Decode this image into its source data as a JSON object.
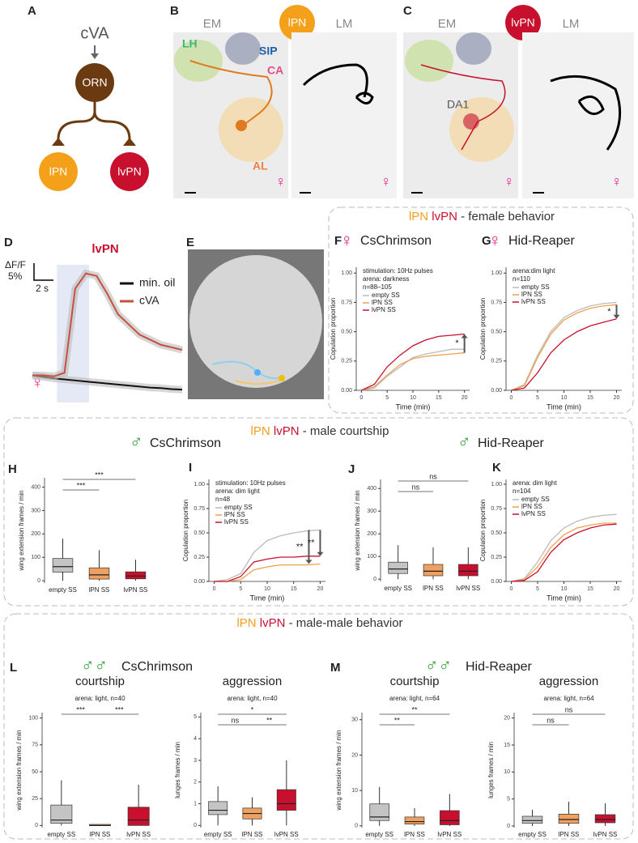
{
  "figure": {
    "panel_labels": [
      "A",
      "B",
      "C",
      "D",
      "E",
      "F",
      "G",
      "H",
      "I",
      "J",
      "K",
      "L",
      "M"
    ],
    "a": {
      "stimulus": "cVA",
      "orn": "ORN",
      "lpn": "lPN",
      "lvpn": "lvPN"
    },
    "b": {
      "em": "EM",
      "neuron": "lPN",
      "lm": "LM",
      "lh": "LH",
      "sip": "SIP",
      "ca": "CA",
      "al": "AL",
      "sex": "♀"
    },
    "c": {
      "em": "EM",
      "neuron": "lvPN",
      "lm": "LM",
      "da1": "DA1",
      "sex": "♀"
    },
    "sections": [
      {
        "neuron1": "lPN",
        "neuron2": "lvPN",
        "title": "- female behavior"
      },
      {
        "neuron1": "lPN",
        "neuron2": "lvPN",
        "title": "- male courtship"
      },
      {
        "neuron1": "lPN",
        "neuron2": "lvPN",
        "title": "- male-male behavior"
      }
    ],
    "conditions": [
      {
        "symbol": "♀",
        "name": "CsChrimson"
      },
      {
        "symbol": "♀",
        "name": "Hid-Reaper"
      },
      {
        "symbol": "♂",
        "name": "CsChrimson"
      },
      {
        "symbol": "♂",
        "name": "Hid-Reaper"
      },
      {
        "symbol": "♂♂",
        "name": "CsChrimson"
      },
      {
        "symbol": "♂♂",
        "name": "Hid-Reaper"
      }
    ]
  },
  "chart_data": [
    {
      "type": "trace",
      "title": "lvPN",
      "scalebar_y": [
        "ΔF/F",
        "5%"
      ],
      "scalebar_x": "2 s",
      "sex": "♀",
      "x": [
        0,
        1,
        2,
        3,
        4,
        5,
        6,
        7,
        8,
        9,
        10,
        11,
        12,
        13,
        14
      ],
      "xlim": [
        0,
        14
      ],
      "ylim": [
        -5,
        22
      ],
      "series": [
        {
          "name": "min. oil",
          "color": "#111111",
          "values": [
            0,
            -0.3,
            -0.6,
            -0.8,
            -1,
            -1.2,
            -1.4,
            -1.6,
            -1.8,
            -2,
            -2.2,
            -2.4,
            -2.5,
            -2.7,
            -2.8
          ]
        },
        {
          "name": "cVA",
          "color": "#c8503e",
          "values": [
            0,
            0,
            -0.2,
            0.5,
            17,
            20,
            19.5,
            16,
            12,
            10,
            8,
            7,
            6,
            5.5,
            5
          ]
        }
      ]
    },
    {
      "type": "line",
      "annotations": [
        "stimulation: 10Hz pulses",
        "arena: darkness",
        "n=88–105"
      ],
      "xlabel": "Time (min)",
      "ylabel": "Copulation proportion",
      "x": [
        0,
        2.5,
        5,
        7.5,
        10,
        12.5,
        15,
        17.5,
        20
      ],
      "xlim": [
        -1,
        21
      ],
      "xticks": [
        0,
        5,
        10,
        15,
        20
      ],
      "ylim": [
        0,
        1.05
      ],
      "yticks": [
        {
          "value": 0,
          "label": "0.00"
        },
        {
          "value": 0.25,
          "label": "0.25"
        },
        {
          "value": 0.5,
          "label": "0.50"
        },
        {
          "value": 0.75,
          "label": "0.75"
        },
        {
          "value": 1,
          "label": "1.00"
        }
      ],
      "series": [
        {
          "name": "empty SS",
          "color": "#bbbbbb",
          "values": [
            0,
            0.02,
            0.12,
            0.2,
            0.28,
            0.31,
            0.33,
            0.35,
            0.35
          ]
        },
        {
          "name": "lPN SS",
          "color": "#f0a050",
          "values": [
            0,
            0.03,
            0.13,
            0.22,
            0.27,
            0.29,
            0.3,
            0.31,
            0.32
          ]
        },
        {
          "name": "lvPN SS",
          "color": "#c8102e",
          "values": [
            0,
            0.05,
            0.2,
            0.3,
            0.38,
            0.43,
            0.46,
            0.47,
            0.48
          ]
        }
      ],
      "significance": [
        "*"
      ]
    },
    {
      "type": "line",
      "annotations": [
        "arena:dim light",
        "n=110"
      ],
      "xlabel": "Time (min)",
      "ylabel": "Copulation proportion",
      "x": [
        0,
        2.5,
        5,
        7.5,
        10,
        12.5,
        15,
        17.5,
        20
      ],
      "xlim": [
        -1,
        21
      ],
      "xticks": [
        0,
        5,
        10,
        15,
        20
      ],
      "ylim": [
        0,
        1.05
      ],
      "yticks": [
        {
          "value": 0,
          "label": "0.00"
        },
        {
          "value": 0.25,
          "label": "0.25"
        },
        {
          "value": 0.5,
          "label": "0.50"
        },
        {
          "value": 0.75,
          "label": "0.75"
        },
        {
          "value": 1,
          "label": "1.00"
        }
      ],
      "series": [
        {
          "name": "empty SS",
          "color": "#bbbbbb",
          "values": [
            0,
            0.05,
            0.3,
            0.5,
            0.62,
            0.68,
            0.72,
            0.74,
            0.75
          ]
        },
        {
          "name": "lPN SS",
          "color": "#f0a050",
          "values": [
            0,
            0.04,
            0.28,
            0.48,
            0.6,
            0.66,
            0.7,
            0.72,
            0.73
          ]
        },
        {
          "name": "lvPN SS",
          "color": "#c8102e",
          "values": [
            0,
            0.02,
            0.15,
            0.32,
            0.43,
            0.5,
            0.55,
            0.58,
            0.61
          ]
        }
      ],
      "significance": [
        "*"
      ]
    },
    {
      "type": "box",
      "ylabel": "wing extension frames / min",
      "categories": [
        "empty SS",
        "lPN SS",
        "lvPN SS"
      ],
      "colors": [
        "#c4c4c4",
        "#f0a060",
        "#c8102e"
      ],
      "ylim": [
        -10,
        440
      ],
      "yticks": [
        0,
        100,
        200,
        300,
        400
      ],
      "boxes": [
        {
          "min": 0,
          "q1": 37,
          "median": 60,
          "q3": 95,
          "max": 180
        },
        {
          "min": 0,
          "q1": 7,
          "median": 25,
          "q3": 55,
          "max": 130
        },
        {
          "min": 0,
          "q1": 8,
          "median": 20,
          "q3": 38,
          "max": 90
        }
      ],
      "significance": [
        "***",
        "***"
      ]
    },
    {
      "type": "line",
      "annotations": [
        "stimulation: 10Hz pulses",
        "arena: dim light",
        "n=48"
      ],
      "xlabel": "Time (min)",
      "ylabel": "Copulation proportion",
      "x": [
        0,
        2.5,
        5,
        7.5,
        10,
        12.5,
        15,
        17.5,
        20
      ],
      "xlim": [
        -1,
        21
      ],
      "xticks": [
        0,
        5,
        10,
        15,
        20
      ],
      "ylim": [
        0,
        1.05
      ],
      "yticks": [
        {
          "value": 0,
          "label": "0.00"
        },
        {
          "value": 0.25,
          "label": "0.25"
        },
        {
          "value": 0.5,
          "label": "0.50"
        },
        {
          "value": 0.75,
          "label": "0.75"
        },
        {
          "value": 1,
          "label": "1.00"
        }
      ],
      "series": [
        {
          "name": "empty SS",
          "color": "#bbbbbb",
          "values": [
            0,
            0.02,
            0.08,
            0.3,
            0.42,
            0.47,
            0.5,
            0.52,
            0.53
          ]
        },
        {
          "name": "lPN SS",
          "color": "#f0a050",
          "values": [
            0,
            0,
            0.02,
            0.12,
            0.15,
            0.17,
            0.17,
            0.17,
            0.18
          ]
        },
        {
          "name": "lvPN SS",
          "color": "#c8102e",
          "values": [
            0,
            0,
            0.05,
            0.2,
            0.23,
            0.25,
            0.25,
            0.26,
            0.26
          ]
        }
      ],
      "significance": [
        "**",
        "**"
      ]
    },
    {
      "type": "box",
      "ylabel": "wing extension frames / min",
      "categories": [
        "empty SS",
        "lPN SS",
        "lvPN SS"
      ],
      "colors": [
        "#c4c4c4",
        "#f0a060",
        "#c8102e"
      ],
      "ylim": [
        -10,
        440
      ],
      "yticks": [
        0,
        100,
        200,
        300,
        400
      ],
      "boxes": [
        {
          "min": 0,
          "q1": 25,
          "median": 45,
          "q3": 75,
          "max": 150
        },
        {
          "min": 0,
          "q1": 15,
          "median": 35,
          "q3": 65,
          "max": 140
        },
        {
          "min": 0,
          "q1": 15,
          "median": 35,
          "q3": 65,
          "max": 140
        }
      ],
      "significance": [
        "ns",
        "ns"
      ]
    },
    {
      "type": "line",
      "annotations": [
        "arena: dim light",
        "n=104"
      ],
      "xlabel": "Time (min)",
      "ylabel": "Copulation proportion",
      "x": [
        0,
        2.5,
        5,
        7.5,
        10,
        12.5,
        15,
        17.5,
        20
      ],
      "xlim": [
        -1,
        21
      ],
      "xticks": [
        0,
        5,
        10,
        15,
        20
      ],
      "ylim": [
        0,
        1.05
      ],
      "yticks": [
        {
          "value": 0,
          "label": "0.00"
        },
        {
          "value": 0.25,
          "label": "0.25"
        },
        {
          "value": 0.5,
          "label": "0.50"
        },
        {
          "value": 0.75,
          "label": "0.75"
        },
        {
          "value": 1,
          "label": "1.00"
        }
      ],
      "series": [
        {
          "name": "empty SS",
          "color": "#bbbbbb",
          "values": [
            0,
            0.03,
            0.2,
            0.42,
            0.55,
            0.62,
            0.66,
            0.68,
            0.69
          ]
        },
        {
          "name": "lPN SS",
          "color": "#f0a050",
          "values": [
            0,
            0.02,
            0.15,
            0.35,
            0.48,
            0.55,
            0.58,
            0.6,
            0.6
          ]
        },
        {
          "name": "lvPN SS",
          "color": "#c8102e",
          "values": [
            0,
            0.01,
            0.1,
            0.3,
            0.43,
            0.5,
            0.55,
            0.58,
            0.59
          ]
        }
      ]
    },
    {
      "type": "box",
      "title": "courtship",
      "subtitle": "arena: light, n=40",
      "ylabel": "wing extension frames / min",
      "categories": [
        "empty SS",
        "lPN SS",
        "lvPN SS"
      ],
      "colors": [
        "#c4c4c4",
        "#f0a060",
        "#c8102e"
      ],
      "ylim": [
        -2,
        105
      ],
      "yticks": [
        0,
        25,
        50,
        75,
        100
      ],
      "boxes": [
        {
          "min": 0,
          "q1": 2,
          "median": 5,
          "q3": 19,
          "max": 42
        },
        {
          "min": 0,
          "q1": 0,
          "median": 0,
          "q3": 1,
          "max": 1
        },
        {
          "min": 0,
          "q1": 0,
          "median": 5,
          "q3": 17,
          "max": 38
        }
      ],
      "significance": [
        "***",
        "***"
      ]
    },
    {
      "type": "box",
      "title": "aggression",
      "subtitle": "arena: light, n=40",
      "ylabel": "lunges frames / min",
      "categories": [
        "empty SS",
        "lPN SS",
        "lvPN SS"
      ],
      "colors": [
        "#c4c4c4",
        "#f0a060",
        "#c8102e"
      ],
      "ylim": [
        -0.1,
        5.2
      ],
      "yticks": [
        0,
        1,
        2,
        3,
        4,
        5
      ],
      "boxes": [
        {
          "min": 0,
          "q1": 0.5,
          "median": 0.7,
          "q3": 1.1,
          "max": 1.8
        },
        {
          "min": 0,
          "q1": 0.3,
          "median": 0.55,
          "q3": 0.8,
          "max": 1.3
        },
        {
          "min": 0,
          "q1": 0.7,
          "median": 1.0,
          "q3": 1.65,
          "max": 3
        }
      ],
      "significance": [
        "*",
        "ns",
        "**"
      ]
    },
    {
      "type": "box",
      "title": "courtship",
      "subtitle": "arena: light, n=64",
      "ylabel": "wing extension frames / min",
      "categories": [
        "empty SS",
        "lPN SS",
        "lvPN SS"
      ],
      "colors": [
        "#c4c4c4",
        "#f0a060",
        "#c8102e"
      ],
      "ylim": [
        -0.5,
        32
      ],
      "yticks": [
        0,
        10,
        20,
        30
      ],
      "boxes": [
        {
          "min": 0,
          "q1": 1.5,
          "median": 2.5,
          "q3": 6.2,
          "max": 11
        },
        {
          "min": 0,
          "q1": 0.5,
          "median": 1.2,
          "q3": 2.5,
          "max": 5
        },
        {
          "min": 0,
          "q1": 0.3,
          "median": 1.5,
          "q3": 4.3,
          "max": 9
        }
      ],
      "significance": [
        "**",
        "**"
      ]
    },
    {
      "type": "box",
      "title": "aggression",
      "subtitle": "arena: light, n=64",
      "ylabel": "lunges frames / min",
      "categories": [
        "empty SS",
        "lPN SS",
        "lvPN SS"
      ],
      "colors": [
        "#c4c4c4",
        "#f0a060",
        "#c8102e"
      ],
      "ylim": [
        -0.3,
        21
      ],
      "yticks": [
        0,
        5,
        10,
        15,
        20
      ],
      "boxes": [
        {
          "min": 0,
          "q1": 0.5,
          "median": 1,
          "q3": 1.8,
          "max": 3
        },
        {
          "min": 0,
          "q1": 0.5,
          "median": 1.2,
          "q3": 2.2,
          "max": 4.5
        },
        {
          "min": 0,
          "q1": 0.6,
          "median": 1.2,
          "q3": 2.1,
          "max": 4.2
        }
      ],
      "significance": [
        "ns",
        "ns"
      ]
    }
  ]
}
